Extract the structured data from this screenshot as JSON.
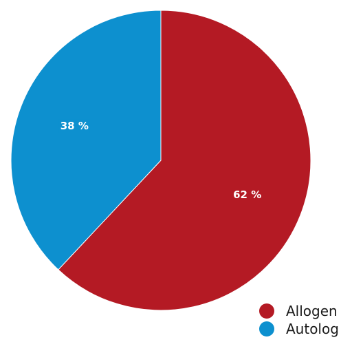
{
  "chart_data": {
    "type": "pie",
    "title": "",
    "slices": [
      {
        "label": "Allogen",
        "value": 62,
        "display": "62 %",
        "color": "#b41a24"
      },
      {
        "label": "Autolog",
        "value": 38,
        "display": "38 %",
        "color": "#0d90cf"
      }
    ],
    "start_angle_deg": 0,
    "direction": "clockwise",
    "legend": {
      "placement": "bottom-right",
      "items": [
        "Allogen",
        "Autolog"
      ]
    }
  }
}
